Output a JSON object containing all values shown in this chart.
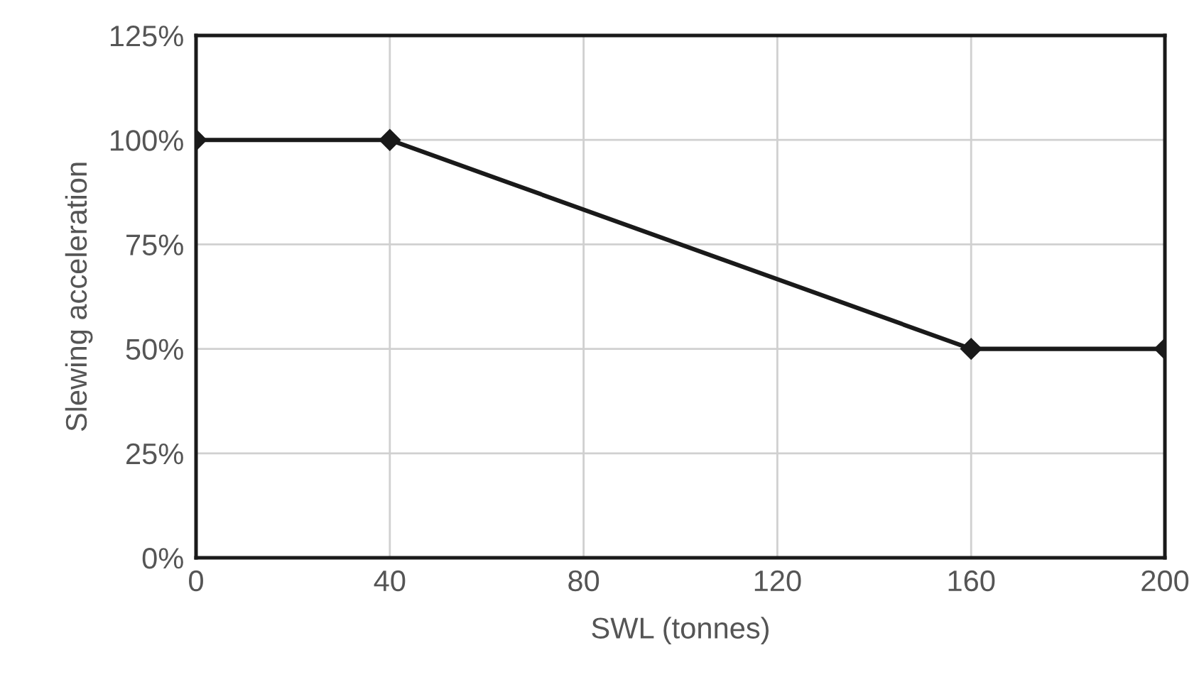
{
  "chart_data": {
    "type": "line",
    "xlabel": "SWL (tonnes)",
    "ylabel": "Slewing acceleration",
    "x": [
      0,
      40,
      160,
      200
    ],
    "series": [
      {
        "color": "#1a1a1a",
        "values": [
          100,
          100,
          50,
          50
        ]
      }
    ],
    "xlim": [
      0,
      200
    ],
    "xticks": [
      0,
      40,
      80,
      120,
      160,
      200
    ],
    "ylim": [
      0,
      125
    ],
    "yticks": [
      {
        "value": 0,
        "label": "0%"
      },
      {
        "value": 25,
        "label": "25%"
      },
      {
        "value": 50,
        "label": "50%"
      },
      {
        "value": 75,
        "label": "75%"
      },
      {
        "value": 100,
        "label": "100%"
      },
      {
        "value": 125,
        "label": "125%"
      }
    ],
    "grid": true,
    "marker": "diamond",
    "line_style": "solid"
  }
}
